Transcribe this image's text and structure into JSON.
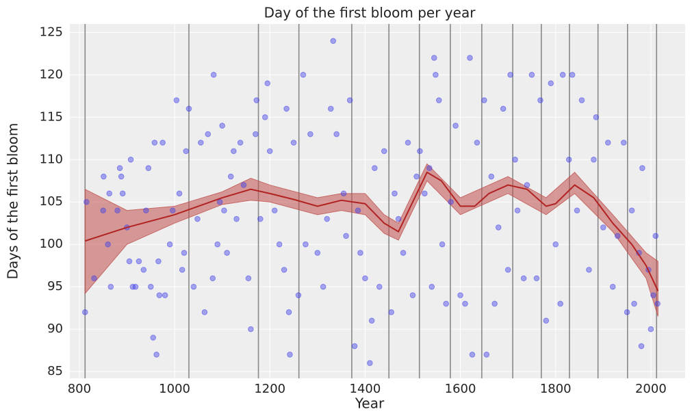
{
  "chart_data": {
    "type": "scatter",
    "title": "Day of the first bloom per year",
    "xlabel": "Year",
    "ylabel": "Days of the first bloom",
    "xlim": [
      780,
      2072
    ],
    "ylim": [
      84.2,
      126
    ],
    "xticks": [
      800,
      1000,
      1200,
      1400,
      1600,
      1800,
      2000
    ],
    "yticks": [
      85,
      90,
      95,
      100,
      105,
      110,
      115,
      120,
      125
    ],
    "grid": true,
    "knots": [
      812,
      1030,
      1176,
      1261,
      1372,
      1450,
      1514,
      1579,
      1645,
      1710,
      1770,
      1829,
      1889,
      1951,
      2012
    ],
    "knot_color": "#888888",
    "points": {
      "color": "#4040e8",
      "x": [
        812,
        815,
        831,
        850,
        851,
        860,
        863,
        866,
        880,
        885,
        888,
        891,
        900,
        905,
        908,
        912,
        918,
        925,
        935,
        940,
        945,
        950,
        955,
        958,
        962,
        966,
        968,
        975,
        980,
        990,
        996,
        1004,
        1010,
        1016,
        1020,
        1024,
        1030,
        1040,
        1048,
        1055,
        1063,
        1070,
        1080,
        1082,
        1090,
        1095,
        1100,
        1104,
        1110,
        1118,
        1124,
        1130,
        1138,
        1145,
        1155,
        1160,
        1170,
        1172,
        1180,
        1190,
        1195,
        1200,
        1210,
        1220,
        1230,
        1235,
        1240,
        1242,
        1250,
        1260,
        1270,
        1275,
        1285,
        1300,
        1312,
        1320,
        1328,
        1333,
        1340,
        1355,
        1360,
        1368,
        1378,
        1385,
        1390,
        1400,
        1410,
        1414,
        1420,
        1430,
        1440,
        1455,
        1462,
        1470,
        1480,
        1490,
        1500,
        1508,
        1515,
        1525,
        1535,
        1540,
        1545,
        1548,
        1555,
        1562,
        1570,
        1580,
        1590,
        1600,
        1610,
        1620,
        1625,
        1635,
        1650,
        1655,
        1665,
        1672,
        1680,
        1690,
        1700,
        1705,
        1715,
        1720,
        1733,
        1740,
        1750,
        1760,
        1768,
        1780,
        1790,
        1800,
        1810,
        1815,
        1828,
        1835,
        1845,
        1855,
        1870,
        1880,
        1885,
        1900,
        1910,
        1920,
        1930,
        1943,
        1950,
        1960,
        1965,
        1975,
        1980,
        1982,
        1995,
        2000,
        2005,
        2010,
        2014
      ],
      "y": [
        92,
        105,
        96,
        104,
        108,
        100,
        106,
        95,
        104,
        109,
        108,
        106,
        102,
        98,
        110,
        95,
        95,
        98,
        97,
        104,
        109,
        95,
        89,
        112,
        87,
        98,
        94,
        112,
        94,
        100,
        104,
        117,
        106,
        97,
        99,
        111,
        116,
        95,
        103,
        112,
        92,
        113,
        96,
        120,
        100,
        105,
        114,
        104,
        99,
        108,
        111,
        103,
        112,
        107,
        96,
        90,
        113,
        117,
        103,
        115,
        119,
        111,
        104,
        100,
        97,
        116,
        92,
        87,
        112,
        94,
        120,
        100,
        113,
        99,
        95,
        103,
        116,
        124,
        113,
        106,
        101,
        117,
        88,
        104,
        99,
        96,
        86,
        91,
        109,
        95,
        111,
        92,
        106,
        103,
        99,
        112,
        94,
        108,
        111,
        106,
        109,
        95,
        122,
        120,
        117,
        100,
        93,
        105,
        114,
        94,
        93,
        122,
        87,
        112,
        117,
        87,
        108,
        93,
        102,
        116,
        97,
        120,
        110,
        104,
        96,
        107,
        120,
        96,
        117,
        91,
        119,
        100,
        93,
        120,
        110,
        120,
        104,
        117,
        97,
        110,
        115,
        102,
        112,
        95,
        101,
        112,
        92,
        104,
        93,
        99,
        88,
        109,
        97,
        90,
        94,
        101,
        93
      ]
    },
    "mean": {
      "color": "#b22222",
      "x": [
        812,
        900,
        1000,
        1100,
        1160,
        1200,
        1250,
        1300,
        1350,
        1400,
        1440,
        1470,
        1500,
        1530,
        1560,
        1600,
        1630,
        1660,
        1700,
        1740,
        1780,
        1800,
        1840,
        1880,
        1920,
        1960,
        1990,
        2015
      ],
      "values": [
        100.4,
        102,
        103.5,
        105.5,
        106.5,
        106,
        105.3,
        104.5,
        105.2,
        104.8,
        102.5,
        101.5,
        105,
        108.5,
        107.5,
        104.5,
        104.5,
        106,
        107,
        106.5,
        104.5,
        104.8,
        107,
        105.5,
        102.5,
        100,
        97.5,
        94.5
      ]
    },
    "interval": {
      "color": "#c0504d",
      "x": [
        812,
        900,
        1000,
        1100,
        1160,
        1200,
        1300,
        1350,
        1400,
        1440,
        1470,
        1530,
        1600,
        1700,
        1780,
        1840,
        1920,
        1990,
        2015
      ],
      "lower": [
        94.2,
        100,
        102.5,
        104.7,
        105.2,
        105,
        103.5,
        104,
        103.5,
        101.3,
        100.5,
        107.5,
        103.5,
        106,
        103.5,
        106,
        101.5,
        96,
        91.5
      ],
      "upper": [
        106.5,
        104,
        104.5,
        106.2,
        107.8,
        107,
        105.5,
        106,
        106,
        103.5,
        102.5,
        109.5,
        105.5,
        108,
        105.5,
        108.5,
        103.5,
        99,
        98
      ]
    }
  }
}
